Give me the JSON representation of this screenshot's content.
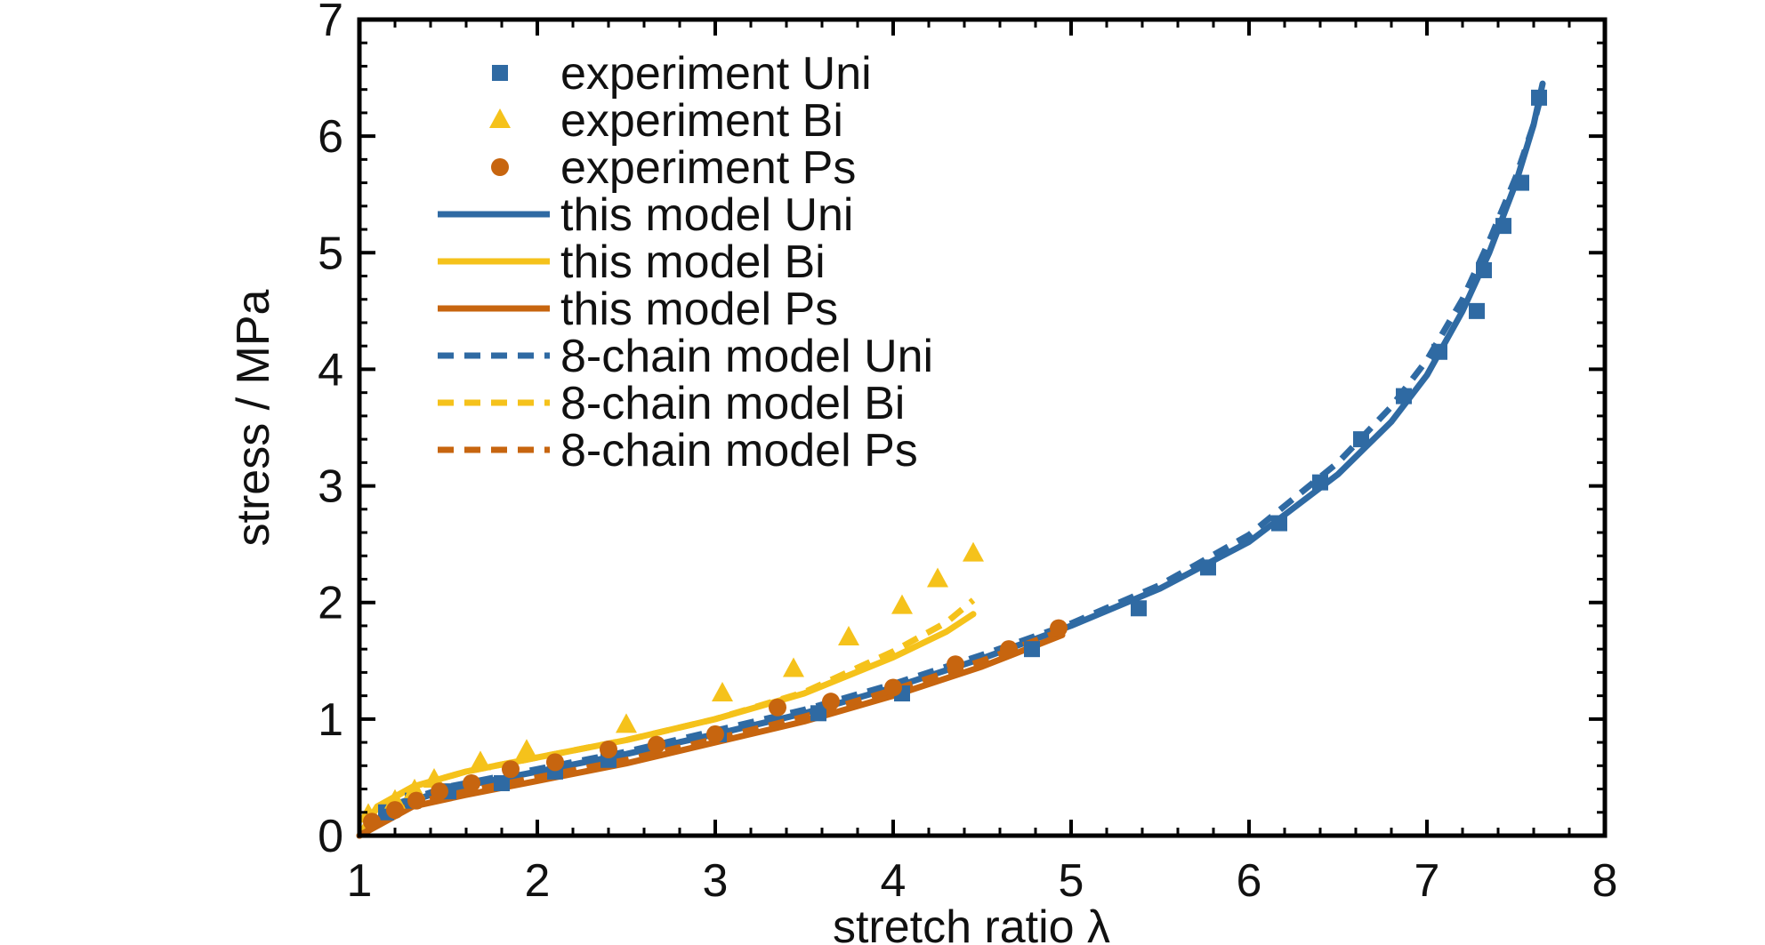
{
  "colors": {
    "blue": "#2f6aa3",
    "yellow": "#f5c21b",
    "orange": "#c7650f",
    "axis": "#000000"
  },
  "chart_data": {
    "type": "line",
    "title": "",
    "xlabel": "stretch ratio λ",
    "ylabel": "stress / MPa",
    "xlim": [
      1,
      8
    ],
    "ylim": [
      0,
      7
    ],
    "x_ticks": [
      "1",
      "2",
      "3",
      "4",
      "5",
      "6",
      "7",
      "8"
    ],
    "y_ticks": [
      "0",
      "1",
      "2",
      "3",
      "4",
      "5",
      "6",
      "7"
    ],
    "grid": false,
    "legend_position": "top-left",
    "legend": [
      {
        "label": "experiment Uni",
        "kind": "marker",
        "marker": "square",
        "color": "blue"
      },
      {
        "label": "experiment Bi",
        "kind": "marker",
        "marker": "triangle",
        "color": "yellow"
      },
      {
        "label": "experiment Ps",
        "kind": "marker",
        "marker": "circle",
        "color": "orange"
      },
      {
        "label": "this model Uni",
        "kind": "line",
        "dash": false,
        "color": "blue"
      },
      {
        "label": "this model Bi",
        "kind": "line",
        "dash": false,
        "color": "yellow"
      },
      {
        "label": "this model Ps",
        "kind": "line",
        "dash": false,
        "color": "orange"
      },
      {
        "label": "8-chain model Uni",
        "kind": "line",
        "dash": true,
        "color": "blue"
      },
      {
        "label": "8-chain model Bi",
        "kind": "line",
        "dash": true,
        "color": "yellow"
      },
      {
        "label": "8-chain model Ps",
        "kind": "line",
        "dash": true,
        "color": "orange"
      }
    ],
    "series": [
      {
        "name": "experiment Uni",
        "kind": "scatter",
        "marker": "square",
        "color": "blue",
        "x": [
          1.15,
          1.3,
          1.5,
          1.8,
          2.1,
          2.4,
          3.02,
          3.58,
          4.05,
          4.78,
          5.38,
          5.77,
          6.17,
          6.4,
          6.63,
          6.87,
          7.07,
          7.28,
          7.32,
          7.43,
          7.53,
          7.63
        ],
        "y": [
          0.2,
          0.3,
          0.38,
          0.45,
          0.55,
          0.65,
          0.87,
          1.05,
          1.22,
          1.6,
          1.95,
          2.3,
          2.68,
          3.03,
          3.4,
          3.77,
          4.15,
          4.5,
          4.85,
          5.23,
          5.6,
          6.33
        ]
      },
      {
        "name": "experiment Bi",
        "kind": "scatter",
        "marker": "triangle",
        "color": "yellow",
        "x": [
          1.05,
          1.2,
          1.31,
          1.42,
          1.68,
          1.94,
          2.5,
          3.04,
          3.44,
          3.75,
          4.05,
          4.25,
          4.45
        ],
        "y": [
          0.18,
          0.3,
          0.39,
          0.48,
          0.63,
          0.73,
          0.95,
          1.22,
          1.43,
          1.7,
          1.97,
          2.2,
          2.42
        ]
      },
      {
        "name": "experiment Ps",
        "kind": "scatter",
        "marker": "circle",
        "color": "orange",
        "x": [
          1.07,
          1.2,
          1.32,
          1.45,
          1.63,
          1.85,
          2.1,
          2.4,
          2.67,
          3.0,
          3.35,
          3.65,
          4.0,
          4.35,
          4.65,
          4.93
        ],
        "y": [
          0.12,
          0.22,
          0.3,
          0.38,
          0.45,
          0.57,
          0.63,
          0.74,
          0.78,
          0.87,
          1.1,
          1.15,
          1.27,
          1.47,
          1.6,
          1.78
        ]
      },
      {
        "name": "this model Uni",
        "kind": "line",
        "dash": false,
        "color": "blue",
        "x": [
          1.0,
          1.2,
          1.5,
          2.0,
          2.5,
          3.0,
          3.5,
          4.0,
          4.5,
          5.0,
          5.5,
          6.0,
          6.5,
          6.8,
          7.0,
          7.2,
          7.35,
          7.5,
          7.6,
          7.65
        ],
        "y": [
          0.0,
          0.25,
          0.4,
          0.55,
          0.7,
          0.87,
          1.05,
          1.27,
          1.52,
          1.8,
          2.12,
          2.52,
          3.1,
          3.55,
          3.95,
          4.5,
          5.0,
          5.6,
          6.1,
          6.45
        ]
      },
      {
        "name": "this model Bi",
        "kind": "line",
        "dash": false,
        "color": "yellow",
        "x": [
          1.0,
          1.1,
          1.3,
          1.6,
          2.0,
          2.5,
          3.0,
          3.5,
          4.0,
          4.3,
          4.45
        ],
        "y": [
          0.0,
          0.25,
          0.42,
          0.55,
          0.67,
          0.82,
          1.0,
          1.22,
          1.53,
          1.75,
          1.9
        ]
      },
      {
        "name": "this model Ps",
        "kind": "line",
        "dash": false,
        "color": "orange",
        "x": [
          1.0,
          1.3,
          1.6,
          2.0,
          2.5,
          3.0,
          3.5,
          4.0,
          4.5,
          4.95
        ],
        "y": [
          0.0,
          0.25,
          0.35,
          0.47,
          0.62,
          0.8,
          0.98,
          1.2,
          1.45,
          1.72
        ]
      },
      {
        "name": "8-chain model Uni",
        "kind": "line",
        "dash": true,
        "color": "blue",
        "x": [
          1.0,
          1.2,
          1.5,
          2.0,
          2.5,
          3.0,
          3.5,
          4.0,
          4.5,
          5.0,
          5.5,
          6.0,
          6.5,
          6.8,
          7.0,
          7.2,
          7.35,
          7.5,
          7.6,
          7.65
        ],
        "y": [
          0.0,
          0.27,
          0.42,
          0.57,
          0.72,
          0.9,
          1.08,
          1.3,
          1.55,
          1.82,
          2.15,
          2.58,
          3.2,
          3.68,
          4.08,
          4.6,
          5.1,
          5.65,
          6.1,
          6.4
        ]
      },
      {
        "name": "8-chain model Bi",
        "kind": "line",
        "dash": true,
        "color": "yellow",
        "x": [
          1.0,
          1.1,
          1.3,
          1.6,
          2.0,
          2.5,
          3.0,
          3.5,
          4.0,
          4.3,
          4.45
        ],
        "y": [
          0.0,
          0.24,
          0.42,
          0.55,
          0.67,
          0.82,
          1.0,
          1.23,
          1.58,
          1.83,
          2.02
        ]
      },
      {
        "name": "8-chain model Ps",
        "kind": "line",
        "dash": true,
        "color": "orange",
        "x": [
          1.0,
          1.3,
          1.6,
          2.0,
          2.5,
          3.0,
          3.5,
          4.0,
          4.5,
          4.95
        ],
        "y": [
          0.0,
          0.28,
          0.38,
          0.5,
          0.65,
          0.83,
          1.02,
          1.25,
          1.5,
          1.76
        ]
      }
    ]
  }
}
